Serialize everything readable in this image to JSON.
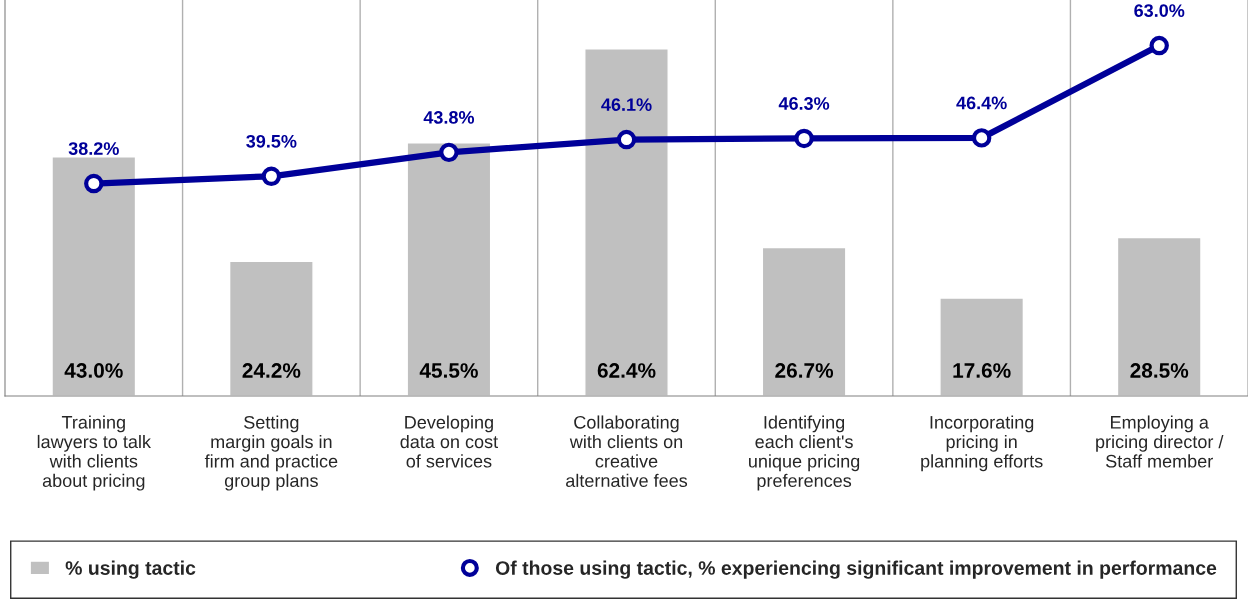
{
  "chart_data": {
    "type": "bar",
    "categories": [
      "Training\nlawyers to talk\nwith clients\nabout pricing",
      "Setting\nmargin goals in\nfirm and practice\ngroup plans",
      "Developing\ndata on cost\nof services",
      "Collaborating\nwith clients on\ncreative\nalternative fees",
      "Identifying\neach client's\nunique pricing\npreferences",
      "Incorporating\npricing in\nplanning efforts",
      "Employing a\npricing director /\nStaff member"
    ],
    "series": [
      {
        "name": "% using tactic",
        "color": "#c0c0c0",
        "values": [
          43.0,
          24.2,
          45.5,
          62.4,
          26.7,
          17.6,
          28.5
        ],
        "value_labels": [
          "43.0%",
          "24.2%",
          "45.5%",
          "62.4%",
          "26.7%",
          "17.6%",
          "28.5%"
        ]
      },
      {
        "name": "Of those using tactic, % experiencing significant improvement in performance",
        "type": "line",
        "color": "#000099",
        "values": [
          38.2,
          39.5,
          43.8,
          46.1,
          46.3,
          46.4,
          63.0
        ],
        "value_labels": [
          "38.2%",
          "39.5%",
          "43.8%",
          "46.1%",
          "46.3%",
          "46.4%",
          "63.0%"
        ]
      }
    ],
    "grid": "x",
    "legend": "bottom",
    "marker": "circle",
    "line_style": "solid"
  }
}
